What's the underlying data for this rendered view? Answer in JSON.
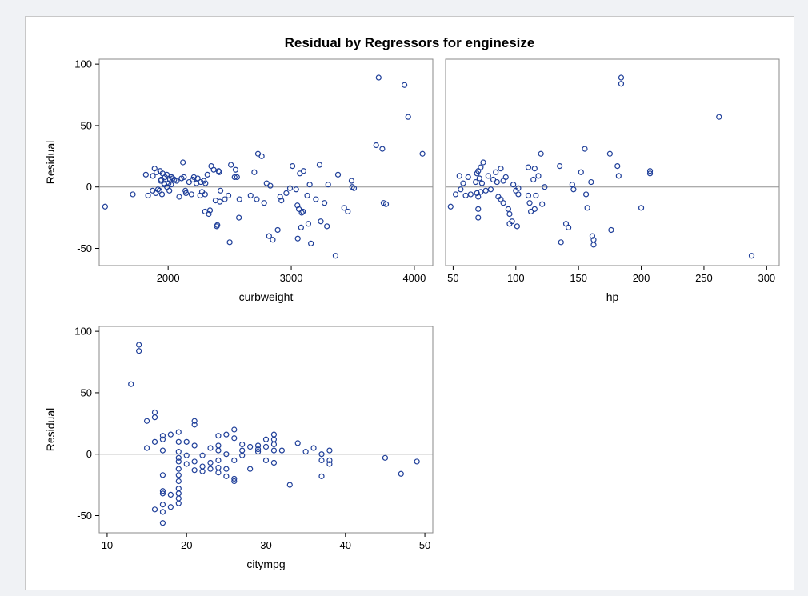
{
  "chart_data": {
    "type": "scatter",
    "title": "Residual by Regressors for enginesize",
    "marker_color": "#1f3f99",
    "refline_color": "#909090",
    "panels": [
      {
        "xlabel": "curbweight",
        "ylabel": "Residual",
        "xlim": [
          1440,
          4150
        ],
        "ylim": [
          -64,
          104
        ],
        "xticks": [
          2000,
          3000,
          4000
        ],
        "yticks": [
          -50,
          0,
          50,
          100
        ],
        "points": [
          [
            1488,
            -16
          ],
          [
            1713,
            -6
          ],
          [
            1819,
            10
          ],
          [
            1837,
            -7
          ],
          [
            1874,
            -3
          ],
          [
            1876,
            9
          ],
          [
            1890,
            15
          ],
          [
            1900,
            -5
          ],
          [
            1905,
            12
          ],
          [
            1918,
            -2
          ],
          [
            1930,
            -3
          ],
          [
            1935,
            13
          ],
          [
            1940,
            5
          ],
          [
            1944,
            6
          ],
          [
            1950,
            -6
          ],
          [
            1955,
            11
          ],
          [
            1967,
            3
          ],
          [
            1970,
            2
          ],
          [
            1975,
            8
          ],
          [
            1989,
            10
          ],
          [
            1990,
            0
          ],
          [
            2004,
            3
          ],
          [
            2010,
            -3
          ],
          [
            2015,
            6
          ],
          [
            2024,
            2
          ],
          [
            2028,
            8
          ],
          [
            2037,
            7
          ],
          [
            2050,
            6
          ],
          [
            2070,
            5
          ],
          [
            2090,
            -8
          ],
          [
            2109,
            7
          ],
          [
            2120,
            20
          ],
          [
            2128,
            8
          ],
          [
            2140,
            -3
          ],
          [
            2145,
            -5
          ],
          [
            2170,
            4
          ],
          [
            2190,
            -6
          ],
          [
            2200,
            6
          ],
          [
            2209,
            8
          ],
          [
            2230,
            3
          ],
          [
            2240,
            7
          ],
          [
            2260,
            -7
          ],
          [
            2265,
            4
          ],
          [
            2275,
            -4
          ],
          [
            2290,
            5
          ],
          [
            2300,
            -20
          ],
          [
            2300,
            -6
          ],
          [
            2303,
            3
          ],
          [
            2319,
            10
          ],
          [
            2330,
            -22
          ],
          [
            2340,
            -19
          ],
          [
            2350,
            17
          ],
          [
            2370,
            14
          ],
          [
            2385,
            -11
          ],
          [
            2395,
            -32
          ],
          [
            2400,
            -31
          ],
          [
            2410,
            13
          ],
          [
            2414,
            12
          ],
          [
            2420,
            -12
          ],
          [
            2425,
            -3
          ],
          [
            2460,
            -10
          ],
          [
            2490,
            -7
          ],
          [
            2500,
            -45
          ],
          [
            2510,
            18
          ],
          [
            2540,
            8
          ],
          [
            2548,
            14
          ],
          [
            2560,
            8
          ],
          [
            2575,
            -25
          ],
          [
            2579,
            -10
          ],
          [
            2670,
            -7
          ],
          [
            2700,
            12
          ],
          [
            2720,
            -10
          ],
          [
            2730,
            27
          ],
          [
            2760,
            25
          ],
          [
            2780,
            -13
          ],
          [
            2800,
            3
          ],
          [
            2820,
            -40
          ],
          [
            2830,
            1
          ],
          [
            2850,
            -43
          ],
          [
            2890,
            -35
          ],
          [
            2910,
            -8
          ],
          [
            2920,
            -11
          ],
          [
            2960,
            -5
          ],
          [
            2990,
            -1
          ],
          [
            3010,
            17
          ],
          [
            3040,
            -2
          ],
          [
            3050,
            -15
          ],
          [
            3053,
            -42
          ],
          [
            3062,
            -18
          ],
          [
            3070,
            11
          ],
          [
            3080,
            -33
          ],
          [
            3085,
            -21
          ],
          [
            3095,
            -20
          ],
          [
            3100,
            13
          ],
          [
            3130,
            -7
          ],
          [
            3139,
            -30
          ],
          [
            3150,
            2
          ],
          [
            3160,
            -46
          ],
          [
            3200,
            -10
          ],
          [
            3230,
            18
          ],
          [
            3240,
            -28
          ],
          [
            3270,
            -13
          ],
          [
            3290,
            -32
          ],
          [
            3300,
            2
          ],
          [
            3360,
            -56
          ],
          [
            3380,
            10
          ],
          [
            3430,
            -17
          ],
          [
            3460,
            -20
          ],
          [
            3490,
            5
          ],
          [
            3495,
            0
          ],
          [
            3510,
            -1
          ],
          [
            3690,
            34
          ],
          [
            3710,
            89
          ],
          [
            3740,
            31
          ],
          [
            3750,
            -13
          ],
          [
            3770,
            -14
          ],
          [
            3920,
            83
          ],
          [
            3950,
            57
          ],
          [
            4066,
            27
          ]
        ]
      },
      {
        "xlabel": "hp",
        "ylabel": "",
        "xlim": [
          44,
          310
        ],
        "ylim": [
          -64,
          104
        ],
        "xticks": [
          50,
          100,
          150,
          200,
          250,
          300
        ],
        "yticks": [],
        "points": [
          [
            48,
            -16
          ],
          [
            52,
            -6
          ],
          [
            55,
            9
          ],
          [
            56,
            -2
          ],
          [
            58,
            3
          ],
          [
            60,
            -7
          ],
          [
            62,
            8
          ],
          [
            64,
            -6
          ],
          [
            68,
            4
          ],
          [
            69,
            11
          ],
          [
            69,
            -5
          ],
          [
            70,
            13
          ],
          [
            70,
            -8
          ],
          [
            70,
            -18
          ],
          [
            70,
            -25
          ],
          [
            71,
            7
          ],
          [
            72,
            -4
          ],
          [
            72,
            16
          ],
          [
            73,
            3
          ],
          [
            74,
            20
          ],
          [
            76,
            -3
          ],
          [
            78,
            9
          ],
          [
            80,
            -2
          ],
          [
            82,
            6
          ],
          [
            84,
            12
          ],
          [
            85,
            4
          ],
          [
            86,
            -8
          ],
          [
            88,
            15
          ],
          [
            88,
            -10
          ],
          [
            90,
            5
          ],
          [
            90,
            -13
          ],
          [
            92,
            8
          ],
          [
            94,
            -18
          ],
          [
            95,
            -22
          ],
          [
            95,
            -30
          ],
          [
            97,
            -28
          ],
          [
            98,
            2
          ],
          [
            100,
            -3
          ],
          [
            101,
            -32
          ],
          [
            102,
            -6
          ],
          [
            102,
            -1
          ],
          [
            110,
            16
          ],
          [
            110,
            -7
          ],
          [
            111,
            -13
          ],
          [
            112,
            -20
          ],
          [
            114,
            6
          ],
          [
            115,
            15
          ],
          [
            115,
            -18
          ],
          [
            116,
            -7
          ],
          [
            118,
            9
          ],
          [
            120,
            27
          ],
          [
            121,
            -14
          ],
          [
            123,
            0
          ],
          [
            135,
            17
          ],
          [
            136,
            -45
          ],
          [
            140,
            -30
          ],
          [
            142,
            -33
          ],
          [
            145,
            2
          ],
          [
            146,
            -2
          ],
          [
            152,
            12
          ],
          [
            155,
            31
          ],
          [
            156,
            -6
          ],
          [
            157,
            -17
          ],
          [
            160,
            4
          ],
          [
            161,
            -40
          ],
          [
            162,
            -43
          ],
          [
            162,
            -47
          ],
          [
            175,
            27
          ],
          [
            176,
            -35
          ],
          [
            181,
            17
          ],
          [
            182,
            9
          ],
          [
            184,
            84
          ],
          [
            184,
            89
          ],
          [
            200,
            -17
          ],
          [
            207,
            13
          ],
          [
            207,
            11
          ],
          [
            262,
            57
          ],
          [
            288,
            -56
          ]
        ]
      },
      {
        "xlabel": "citympg",
        "ylabel": "Residual",
        "xlim": [
          9,
          51
        ],
        "ylim": [
          -64,
          104
        ],
        "xticks": [
          10,
          20,
          30,
          40,
          50
        ],
        "yticks": [
          -50,
          0,
          50,
          100
        ],
        "points": [
          [
            13,
            57
          ],
          [
            14,
            89
          ],
          [
            14,
            84
          ],
          [
            15,
            27
          ],
          [
            15,
            5
          ],
          [
            16,
            34
          ],
          [
            16,
            30
          ],
          [
            16,
            10
          ],
          [
            16,
            -45
          ],
          [
            17,
            15
          ],
          [
            17,
            12
          ],
          [
            17,
            3
          ],
          [
            17,
            -17
          ],
          [
            17,
            -30
          ],
          [
            17,
            -32
          ],
          [
            17,
            -41
          ],
          [
            17,
            -47
          ],
          [
            17,
            -56
          ],
          [
            18,
            16
          ],
          [
            18,
            -33
          ],
          [
            18,
            -43
          ],
          [
            19,
            18
          ],
          [
            19,
            10
          ],
          [
            19,
            2
          ],
          [
            19,
            -3
          ],
          [
            19,
            -6
          ],
          [
            19,
            -12
          ],
          [
            19,
            -17
          ],
          [
            19,
            -22
          ],
          [
            19,
            -28
          ],
          [
            19,
            -32
          ],
          [
            19,
            -36
          ],
          [
            19,
            -40
          ],
          [
            20,
            10
          ],
          [
            20,
            -1
          ],
          [
            20,
            -8
          ],
          [
            21,
            27
          ],
          [
            21,
            24
          ],
          [
            21,
            7
          ],
          [
            21,
            -6
          ],
          [
            21,
            -13
          ],
          [
            22,
            -1
          ],
          [
            22,
            -10
          ],
          [
            22,
            -14
          ],
          [
            23,
            5
          ],
          [
            23,
            -7
          ],
          [
            23,
            -12
          ],
          [
            24,
            15
          ],
          [
            24,
            7
          ],
          [
            24,
            3
          ],
          [
            24,
            -5
          ],
          [
            24,
            -11
          ],
          [
            24,
            -15
          ],
          [
            25,
            16
          ],
          [
            25,
            0
          ],
          [
            25,
            -12
          ],
          [
            25,
            -18
          ],
          [
            26,
            20
          ],
          [
            26,
            13
          ],
          [
            26,
            -5
          ],
          [
            26,
            -20
          ],
          [
            26,
            -22
          ],
          [
            27,
            8
          ],
          [
            27,
            3
          ],
          [
            27,
            -1
          ],
          [
            28,
            6
          ],
          [
            28,
            -12
          ],
          [
            29,
            7
          ],
          [
            29,
            2
          ],
          [
            29,
            4
          ],
          [
            30,
            12
          ],
          [
            30,
            6
          ],
          [
            30,
            -5
          ],
          [
            31,
            16
          ],
          [
            31,
            12
          ],
          [
            31,
            8
          ],
          [
            31,
            3
          ],
          [
            31,
            -7
          ],
          [
            32,
            3
          ],
          [
            33,
            -25
          ],
          [
            34,
            9
          ],
          [
            35,
            2
          ],
          [
            36,
            5
          ],
          [
            37,
            0
          ],
          [
            37,
            -5
          ],
          [
            37,
            -18
          ],
          [
            38,
            3
          ],
          [
            38,
            -5
          ],
          [
            38,
            -8
          ],
          [
            45,
            -3
          ],
          [
            47,
            -16
          ],
          [
            49,
            -6
          ]
        ]
      }
    ]
  }
}
